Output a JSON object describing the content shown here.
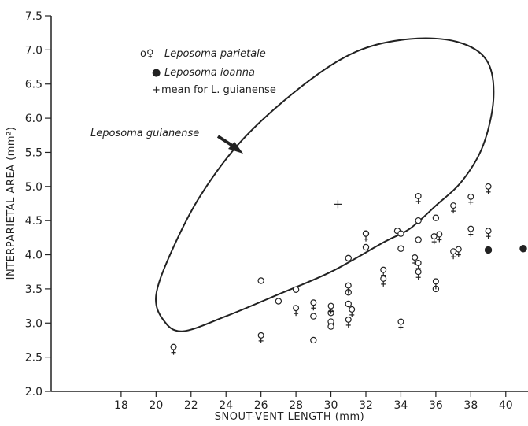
{
  "chart_data": {
    "type": "scatter",
    "xlabel": "SNOUT-VENT LENGTH (mm)",
    "ylabel": "INTERPARIETAL AREA (mm²)",
    "xlim": [
      14,
      41
    ],
    "ylim": [
      2.0,
      7.5
    ],
    "x_ticks": [
      18,
      20,
      22,
      24,
      26,
      28,
      30,
      32,
      34,
      36,
      38,
      40
    ],
    "y_ticks": [
      2.0,
      2.5,
      3.0,
      3.5,
      4.0,
      4.5,
      5.0,
      5.5,
      6.0,
      6.5,
      7.0,
      7.5
    ],
    "x_tick_labels": [
      "18",
      "20",
      "22",
      "24",
      "26",
      "28",
      "30",
      "32",
      "34",
      "36",
      "38",
      "40"
    ],
    "y_tick_labels": [
      "2.0",
      "2.5",
      "3.0",
      "3.5",
      "4.0",
      "4.5",
      "5.0",
      "5.5",
      "6.0",
      "6.5",
      "7.0",
      "7.5"
    ],
    "grid": false,
    "legend": {
      "position": "top-left",
      "items": [
        {
          "symbol": "open-circle-female",
          "label_prefix": "o♀",
          "label": "Leposoma parietale",
          "italic": true
        },
        {
          "symbol": "filled-circle",
          "label_prefix": "●",
          "label": "Leposoma ioanna",
          "italic": true
        },
        {
          "symbol": "plus",
          "label_prefix": "+",
          "label": "mean for L. guianense",
          "italic": false
        }
      ]
    },
    "annotations": [
      {
        "text": "Leposoma guianense",
        "points_to": "envelope"
      }
    ],
    "envelope": {
      "name": "Leposoma guianense",
      "path": [
        [
          21.5,
          2.88
        ],
        [
          24.0,
          3.1
        ],
        [
          27.0,
          3.42
        ],
        [
          30.0,
          3.75
        ],
        [
          33.0,
          4.18
        ],
        [
          34.5,
          4.38
        ],
        [
          36.0,
          4.72
        ],
        [
          37.5,
          5.08
        ],
        [
          38.7,
          5.6
        ],
        [
          39.3,
          6.3
        ],
        [
          38.9,
          6.85
        ],
        [
          37.2,
          7.12
        ],
        [
          34.5,
          7.16
        ],
        [
          31.5,
          6.98
        ],
        [
          28.5,
          6.5
        ],
        [
          25.0,
          5.7
        ],
        [
          22.5,
          4.85
        ],
        [
          20.8,
          4.0
        ],
        [
          20.0,
          3.4
        ],
        [
          20.4,
          3.05
        ],
        [
          21.5,
          2.88
        ]
      ]
    },
    "series": [
      {
        "name": "Leposoma parietale",
        "symbol_type": "circle-open",
        "points": [
          {
            "x": 26,
            "y": 3.62
          },
          {
            "x": 27,
            "y": 3.32
          },
          {
            "x": 28,
            "y": 3.49
          },
          {
            "x": 29,
            "y": 3.1
          },
          {
            "x": 29,
            "y": 2.75
          },
          {
            "x": 30,
            "y": 3.15
          },
          {
            "x": 30,
            "y": 3.02
          },
          {
            "x": 30,
            "y": 2.95
          },
          {
            "x": 31,
            "y": 3.95
          },
          {
            "x": 31,
            "y": 3.45
          },
          {
            "x": 31,
            "y": 3.28
          },
          {
            "x": 32,
            "y": 4.31
          },
          {
            "x": 32,
            "y": 4.11
          },
          {
            "x": 33.8,
            "y": 4.35
          },
          {
            "x": 34,
            "y": 4.31
          },
          {
            "x": 34,
            "y": 4.09
          },
          {
            "x": 35,
            "y": 4.5
          },
          {
            "x": 35,
            "y": 4.22
          },
          {
            "x": 36,
            "y": 4.54
          },
          {
            "x": 36,
            "y": 3.5
          }
        ]
      },
      {
        "name": "Leposoma parietale",
        "symbol_type": "female",
        "points": [
          {
            "x": 21,
            "y": 2.65
          },
          {
            "x": 26,
            "y": 2.82
          },
          {
            "x": 28,
            "y": 3.22
          },
          {
            "x": 29,
            "y": 3.3
          },
          {
            "x": 30,
            "y": 3.25
          },
          {
            "x": 31,
            "y": 3.55
          },
          {
            "x": 31,
            "y": 3.05
          },
          {
            "x": 31.2,
            "y": 3.2
          },
          {
            "x": 32,
            "y": 4.31
          },
          {
            "x": 33,
            "y": 3.78
          },
          {
            "x": 33,
            "y": 3.65
          },
          {
            "x": 34,
            "y": 3.02
          },
          {
            "x": 35,
            "y": 4.86
          },
          {
            "x": 34.8,
            "y": 3.96
          },
          {
            "x": 35,
            "y": 3.88
          },
          {
            "x": 35,
            "y": 3.75
          },
          {
            "x": 35.9,
            "y": 4.27
          },
          {
            "x": 36.2,
            "y": 4.3
          },
          {
            "x": 36,
            "y": 3.61
          },
          {
            "x": 37,
            "y": 4.72
          },
          {
            "x": 37,
            "y": 4.05
          },
          {
            "x": 37.3,
            "y": 4.08
          },
          {
            "x": 38,
            "y": 4.85
          },
          {
            "x": 38,
            "y": 4.38
          },
          {
            "x": 39,
            "y": 5.0
          },
          {
            "x": 39,
            "y": 4.35
          }
        ]
      },
      {
        "name": "Leposoma ioanna",
        "symbol_type": "circle-filled",
        "points": [
          {
            "x": 39,
            "y": 4.07
          },
          {
            "x": 41,
            "y": 4.09
          }
        ]
      },
      {
        "name": "mean for L. guianense",
        "symbol_type": "plus",
        "points": [
          {
            "x": 30.4,
            "y": 4.74
          }
        ]
      }
    ]
  }
}
